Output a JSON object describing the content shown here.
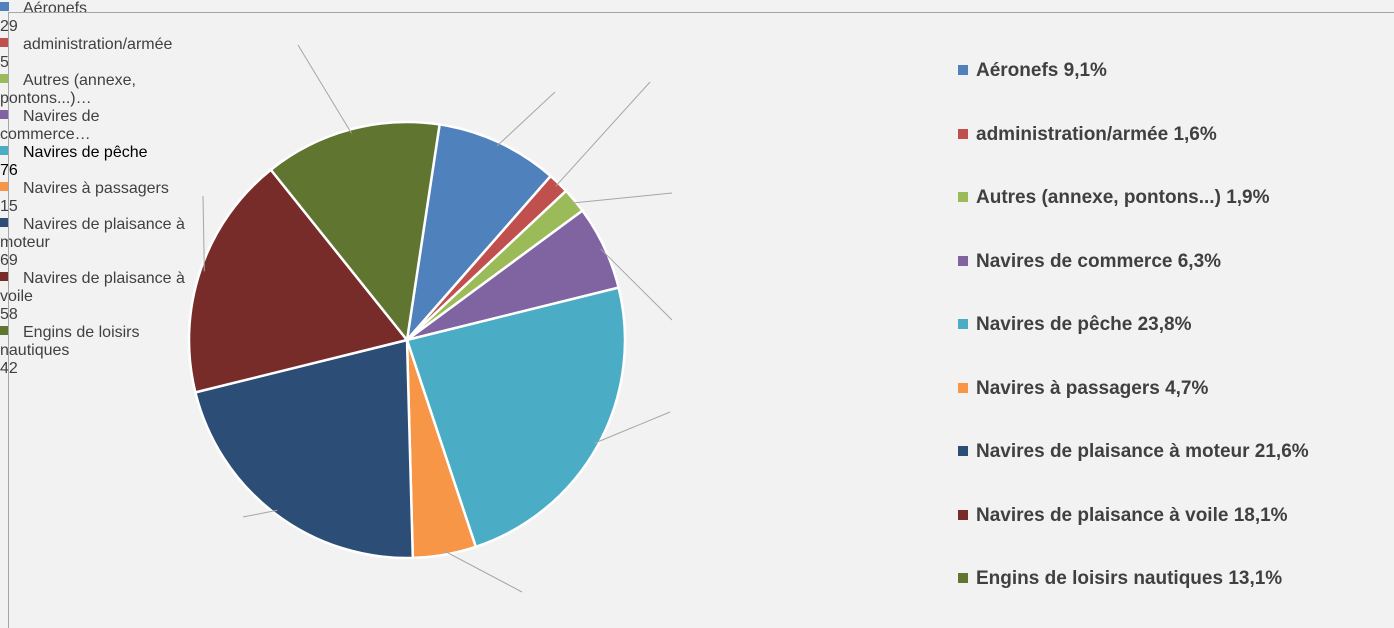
{
  "chart_data": {
    "type": "pie",
    "categories": [
      "Aéronefs",
      "administration/armée",
      "Autres (annexe, pontons...)",
      "Navires de commerce",
      "Navires de pêche",
      "Navires à passagers",
      "Navires de plaisance à moteur",
      "Navires de plaisance à voile",
      "Engins de loisirs nautiques"
    ],
    "values": [
      29,
      5,
      6,
      20,
      76,
      15,
      69,
      58,
      42
    ],
    "colors": [
      "#4f81bd",
      "#c0504d",
      "#9bbb59",
      "#8064a2",
      "#4bacc6",
      "#f79646",
      "#2c4d75",
      "#772c2a",
      "#5f7530"
    ],
    "data_labels": [
      "Aéronefs",
      "administration/armée",
      "Autres (annexe, pontons...)…",
      "Navires de commerce…",
      "Navires de pêche",
      "Navires à passagers",
      "Navires de plaisance à moteur",
      "Navires de plaisance à voile",
      "Engins de loisirs nautiques"
    ],
    "value_labels": [
      "29",
      "5",
      null,
      null,
      "76",
      "15",
      "69",
      "58",
      "42"
    ],
    "percent_labels": [
      "9,1%",
      "1,6%",
      "1,9%",
      "6,3%",
      "23,8%",
      "4,7%",
      "21,6%",
      "18,1%",
      "13,1%"
    ],
    "legend": "right"
  }
}
